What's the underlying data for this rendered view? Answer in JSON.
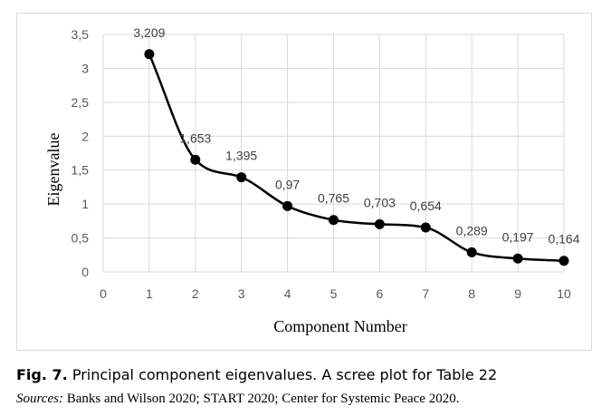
{
  "chart_data": {
    "type": "line",
    "x": [
      1,
      2,
      3,
      4,
      5,
      6,
      7,
      8,
      9,
      10
    ],
    "values": [
      3.209,
      1.653,
      1.395,
      0.97,
      0.765,
      0.703,
      0.654,
      0.289,
      0.197,
      0.164
    ],
    "data_labels": [
      "3,209",
      "1,653",
      "1,395",
      "0,97",
      "0,765",
      "0,703",
      "0,654",
      "0,289",
      "0,197",
      "0,164"
    ],
    "xlabel": "Component Number",
    "ylabel": "Eigenvalue",
    "xlim": [
      0,
      10
    ],
    "ylim": [
      0,
      3.5
    ],
    "x_ticks": [
      "0",
      "1",
      "2",
      "3",
      "4",
      "5",
      "6",
      "7",
      "8",
      "9",
      "10"
    ],
    "y_ticks": [
      "0",
      "0,5",
      "1",
      "1,5",
      "2",
      "2,5",
      "3",
      "3,5"
    ],
    "grid": "vertical and horizontal",
    "smooth": true,
    "line_color": "#000000",
    "grid_color": "#d9d9d9"
  },
  "caption": {
    "label": "Fig. 7.",
    "text": " Principal component eigenvalues. A scree plot for Table 22"
  },
  "sources": {
    "label": "Sources:",
    "text": " Banks and Wilson 2020; START 2020; Center for Systemic Peace 2020."
  }
}
